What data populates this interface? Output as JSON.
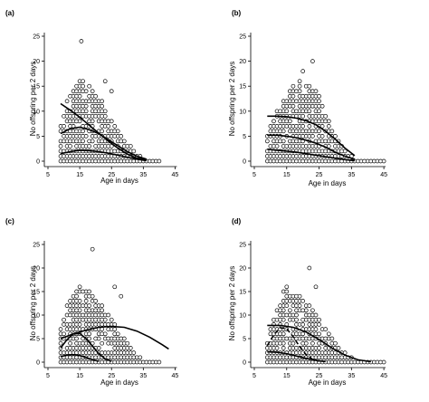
{
  "chart_data": [
    {
      "panel": "(a)",
      "type": "scatter",
      "title": "",
      "xlabel": "Age in days",
      "ylabel": "No offspring per 2 days",
      "xlim": [
        5,
        50
      ],
      "ylim": [
        0,
        25
      ],
      "xticks": [
        5,
        15,
        25,
        35,
        45
      ],
      "yticks": [
        0,
        5,
        10,
        15,
        20,
        25
      ],
      "grid": false,
      "legend": "none",
      "outliers": [
        [
          15.5,
          24
        ],
        [
          23,
          16
        ],
        [
          25,
          14
        ]
      ],
      "lines": [
        {
          "x": [
            9,
            12,
            15,
            18,
            21,
            24,
            27,
            30,
            33,
            36
          ],
          "y": [
            11.5,
            10.2,
            8.8,
            7.2,
            5.6,
            4,
            2.6,
            1.4,
            0.6,
            0.2
          ],
          "style": "solid"
        },
        {
          "x": [
            9,
            12,
            15,
            18,
            21,
            24,
            27,
            30,
            33,
            36
          ],
          "y": [
            5.5,
            6.5,
            6.8,
            6.3,
            5.5,
            4.3,
            3.1,
            1.9,
            1,
            0.4
          ],
          "style": "solid"
        },
        {
          "x": [
            9,
            12,
            15,
            18,
            21,
            24,
            27,
            30,
            33,
            36
          ],
          "y": [
            1.5,
            1.9,
            2.2,
            2.1,
            1.9,
            1.6,
            1.2,
            0.8,
            0.4,
            0.1
          ],
          "style": "solid"
        }
      ]
    },
    {
      "panel": "(b)",
      "type": "scatter",
      "title": "",
      "xlabel": "Age in days",
      "ylabel": "No offspring per 2 days",
      "xlim": [
        5,
        50
      ],
      "ylim": [
        0,
        25
      ],
      "xticks": [
        5,
        15,
        25,
        35,
        45
      ],
      "yticks": [
        0,
        5,
        10,
        15,
        20,
        25
      ],
      "grid": false,
      "legend": "none",
      "outliers": [
        [
          23,
          20
        ],
        [
          20,
          18
        ]
      ],
      "lines": [
        {
          "x": [
            9,
            12,
            15,
            18,
            21,
            24,
            27,
            30,
            33,
            36
          ],
          "y": [
            9,
            9,
            8.9,
            8.6,
            8.1,
            7.3,
            6,
            4.4,
            2.6,
            1.1
          ],
          "style": "solid"
        },
        {
          "x": [
            9,
            12,
            15,
            18,
            21,
            24,
            27,
            30,
            33,
            36
          ],
          "y": [
            5.2,
            5.2,
            5,
            4.7,
            4.2,
            3.6,
            2.8,
            1.8,
            1,
            0.4
          ],
          "style": "solid"
        },
        {
          "x": [
            9,
            12,
            15,
            18,
            21,
            24,
            27,
            30,
            33,
            36
          ],
          "y": [
            2.4,
            2.2,
            2,
            1.8,
            1.5,
            1.2,
            0.9,
            0.6,
            0.3,
            0.1
          ],
          "style": "solid"
        }
      ]
    },
    {
      "panel": "(c)",
      "type": "scatter",
      "title": "",
      "xlabel": "Age in days",
      "ylabel": "No offspring per 2 days",
      "xlim": [
        5,
        50
      ],
      "ylim": [
        0,
        25
      ],
      "xticks": [
        5,
        15,
        25,
        35,
        45
      ],
      "yticks": [
        0,
        5,
        10,
        15,
        20,
        25
      ],
      "grid": false,
      "legend": "none",
      "outliers": [
        [
          19,
          24
        ],
        [
          26,
          16
        ],
        [
          28,
          14
        ]
      ],
      "lines": [
        {
          "x": [
            9,
            13,
            17,
            21,
            25,
            29,
            33,
            37,
            41,
            43
          ],
          "y": [
            5,
            6,
            6.8,
            7.4,
            7.6,
            7.4,
            6.6,
            5.3,
            3.7,
            2.8
          ],
          "style": "solid"
        },
        {
          "x": [
            9,
            11,
            13,
            15,
            17,
            19,
            21,
            23,
            25
          ],
          "y": [
            3,
            4.8,
            6,
            6.1,
            5,
            3.4,
            1.8,
            0.7,
            0.2
          ],
          "style": "solid"
        },
        {
          "x": [
            9,
            11,
            13,
            15,
            17,
            19,
            21
          ],
          "y": [
            1.2,
            1.5,
            1.6,
            1.4,
            1,
            0.5,
            0.2
          ],
          "style": "solid"
        }
      ]
    },
    {
      "panel": "(d)",
      "type": "scatter",
      "title": "",
      "xlabel": "Age in days",
      "ylabel": "No offspring per 2 days",
      "xlim": [
        5,
        50
      ],
      "ylim": [
        0,
        25
      ],
      "xticks": [
        5,
        15,
        25,
        35,
        45
      ],
      "yticks": [
        0,
        5,
        10,
        15,
        20,
        25
      ],
      "grid": false,
      "legend": "none",
      "outliers": [
        [
          22,
          20
        ],
        [
          24,
          16
        ]
      ],
      "lines": [
        {
          "x": [
            9,
            13,
            17,
            21,
            25,
            29,
            33,
            37,
            41
          ],
          "y": [
            7.8,
            7.8,
            7.4,
            6.4,
            4.8,
            3,
            1.5,
            0.5,
            0.1
          ],
          "style": "solid"
        },
        {
          "x": [
            9,
            11,
            13,
            15,
            17,
            19,
            21,
            23,
            25
          ],
          "y": [
            3.5,
            5.8,
            7.3,
            7.1,
            5.4,
            3.3,
            1.6,
            0.6,
            0.2
          ],
          "style": "dashed"
        },
        {
          "x": [
            9,
            12,
            15,
            18,
            21,
            24,
            27
          ],
          "y": [
            2.2,
            2.1,
            1.8,
            1.3,
            0.8,
            0.4,
            0.1
          ],
          "style": "solid"
        }
      ]
    }
  ]
}
